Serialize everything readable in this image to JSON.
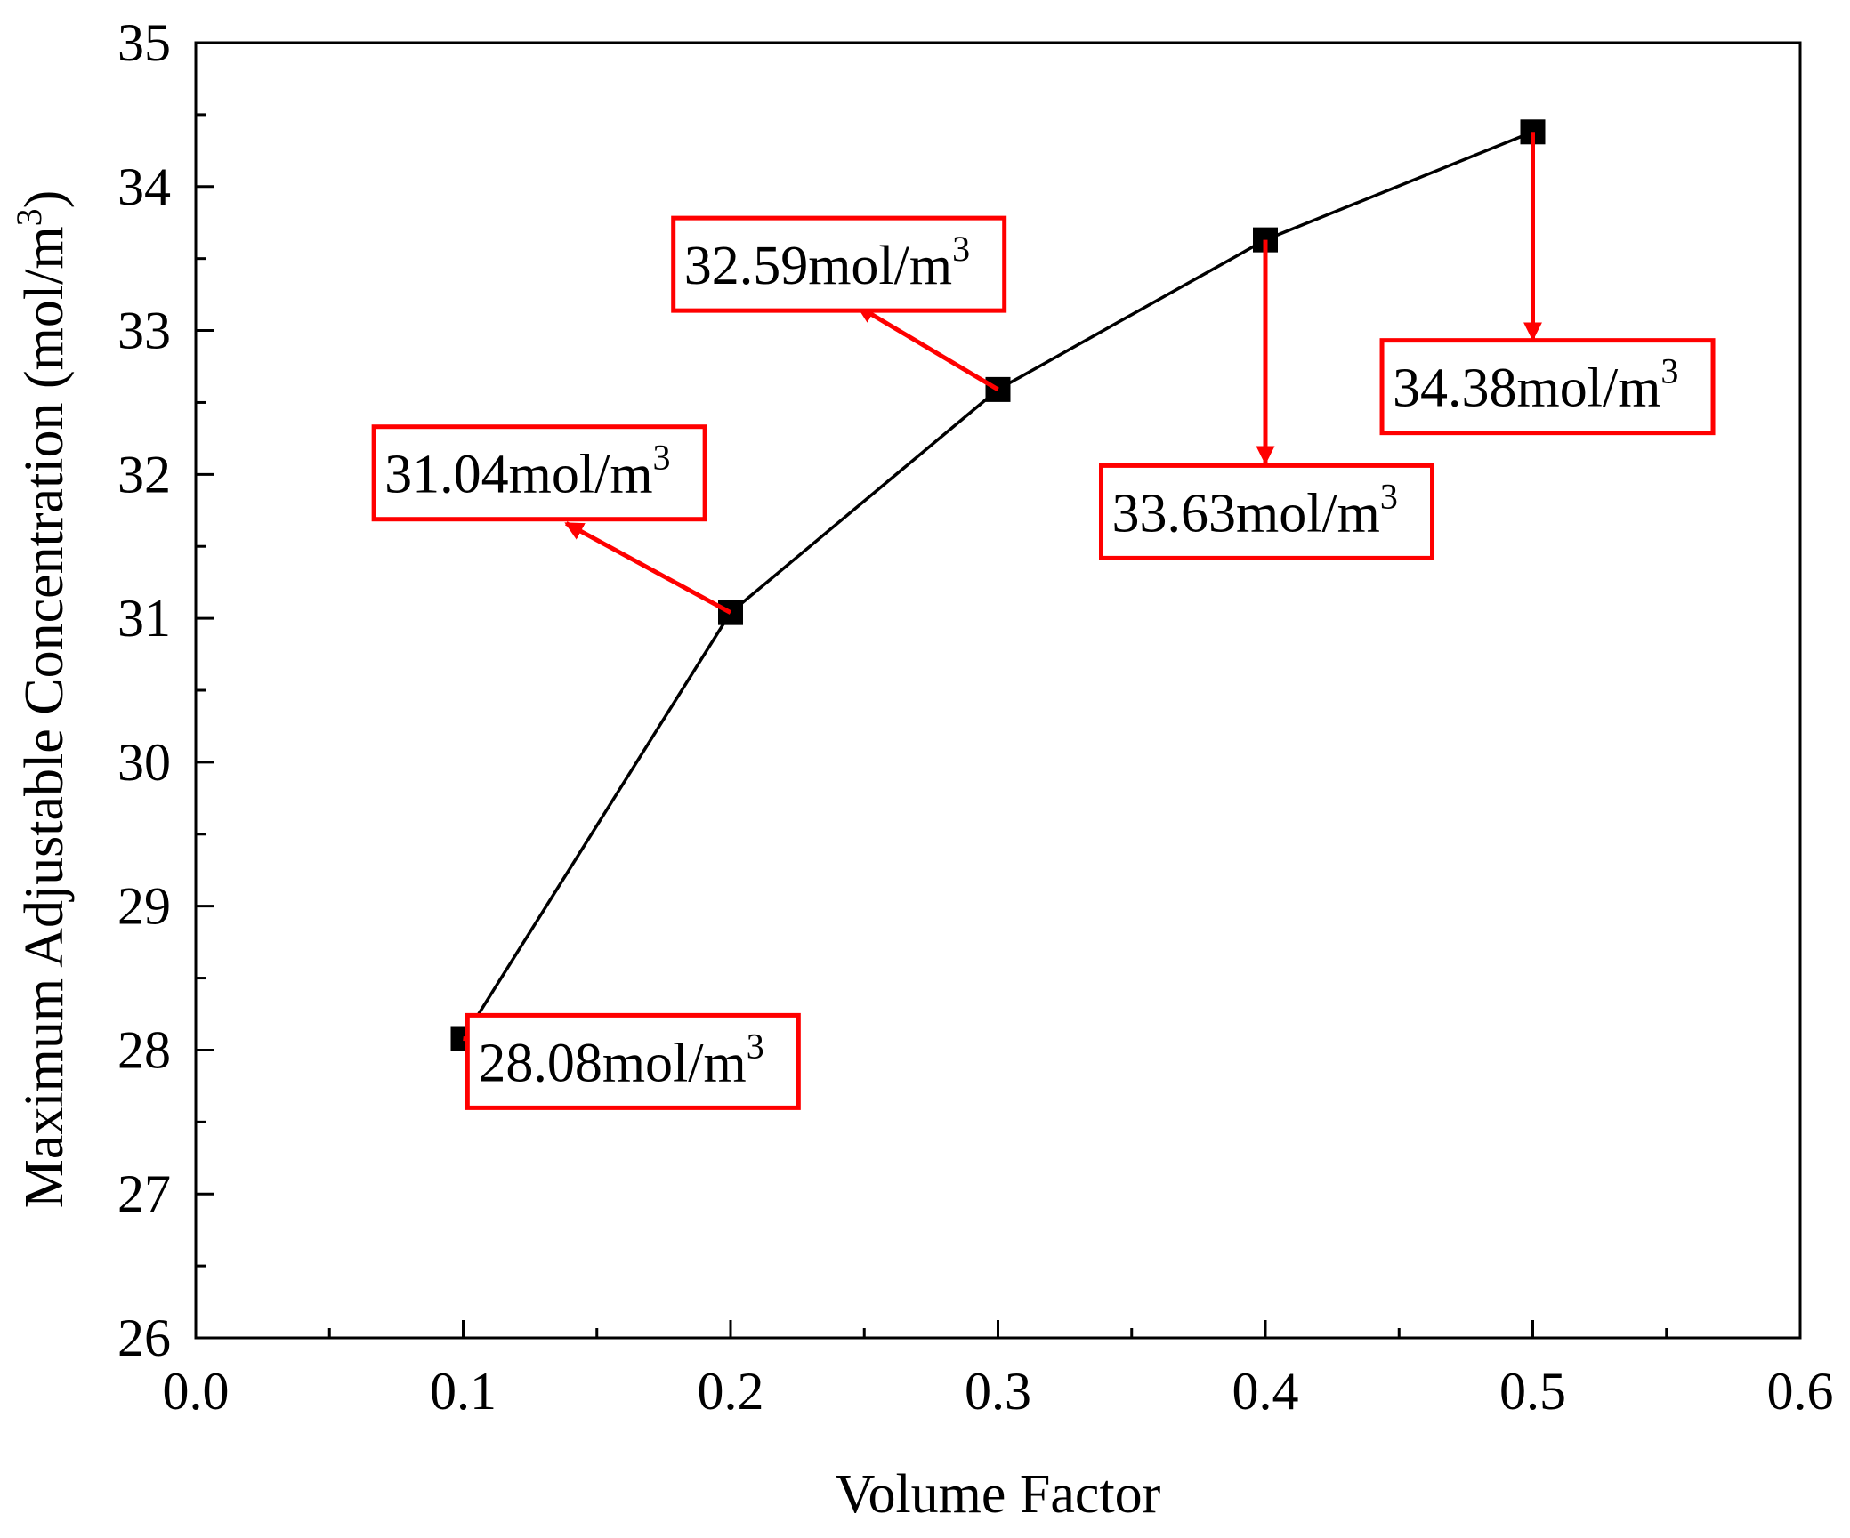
{
  "chart_data": {
    "type": "line",
    "title": "",
    "xlabel": "Volume Factor",
    "ylabel": "Maximum Adjustable Concentration (mol/m",
    "ylabel_superscript": "3",
    "ylabel_close": ")",
    "xlim": [
      0.0,
      0.6
    ],
    "ylim": [
      26,
      35
    ],
    "x_ticks": [
      0.0,
      0.1,
      0.2,
      0.3,
      0.4,
      0.5,
      0.6
    ],
    "x_tick_labels": [
      "0.0",
      "0.1",
      "0.2",
      "0.3",
      "0.4",
      "0.5",
      "0.6"
    ],
    "y_ticks": [
      26,
      27,
      28,
      29,
      30,
      31,
      32,
      33,
      34,
      35
    ],
    "y_tick_labels": [
      "26",
      "27",
      "28",
      "29",
      "30",
      "31",
      "32",
      "33",
      "34",
      "35"
    ],
    "x_minor_step": 0.05,
    "y_minor_step": 0.5,
    "grid": false,
    "legend": "none",
    "series": [
      {
        "name": "Maximum Adjustable Concentration",
        "color": "#000000",
        "marker": "square",
        "x": [
          0.1,
          0.2,
          0.3,
          0.4,
          0.5
        ],
        "values": [
          28.08,
          31.04,
          32.59,
          33.63,
          34.38
        ]
      }
    ],
    "annotations": [
      {
        "text": "28.08mol/m",
        "sup": "3",
        "point": [
          0.1,
          28.08
        ],
        "box_center": [
          0.1635,
          27.92
        ],
        "arrow_end": [
          0.1715,
          27.94
        ]
      },
      {
        "text": "31.04mol/m",
        "sup": "3",
        "point": [
          0.2,
          31.04
        ],
        "box_center": [
          0.1285,
          32.01
        ],
        "arrow_end": [
          0.1385,
          31.66
        ]
      },
      {
        "text": "32.59mol/m",
        "sup": "3",
        "point": [
          0.3,
          32.59
        ],
        "box_center": [
          0.2405,
          33.46
        ],
        "arrow_end": [
          0.2475,
          33.17
        ]
      },
      {
        "text": "33.63mol/m",
        "sup": "3",
        "point": [
          0.4,
          33.63
        ],
        "box_center": [
          0.4005,
          31.74
        ],
        "arrow_end": [
          0.4,
          32.08
        ]
      },
      {
        "text": "34.38mol/m",
        "sup": "3",
        "point": [
          0.5,
          34.38
        ],
        "box_center": [
          0.5055,
          32.61
        ],
        "arrow_end": [
          0.5,
          32.94
        ]
      }
    ],
    "colors": {
      "line": "#000000",
      "marker": "#000000",
      "annotation": "#ff0000",
      "axis": "#000000"
    }
  }
}
